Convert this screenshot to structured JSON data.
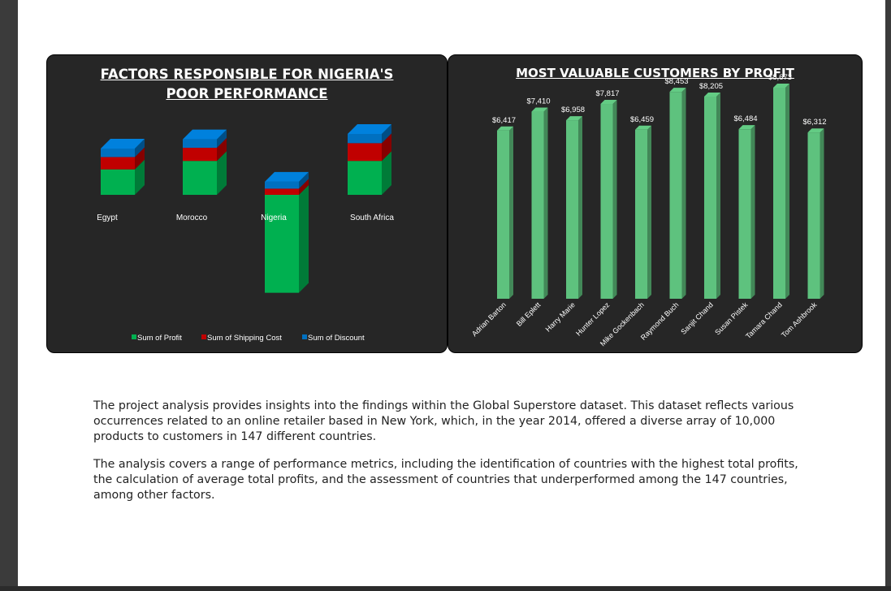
{
  "left_chart": {
    "title": "FACTORS  RESPONSIBLE FOR NIGERIA'S POOR PERFORMANCE",
    "legend": [
      {
        "label": "Sum of Profit",
        "color": "#00b050"
      },
      {
        "label": "Sum of Shipping Cost",
        "color": "#c00000"
      },
      {
        "label": "Sum of Discount",
        "color": "#0070c0"
      }
    ]
  },
  "right_chart": {
    "title": "MOST VALUABLE CUSTOMERS BY PROFIT"
  },
  "chart_data": [
    {
      "type": "bar",
      "stacked": true,
      "title": "FACTORS  RESPONSIBLE FOR NIGERIA'S POOR PERFORMANCE",
      "categories": [
        "Egypt",
        "Morocco",
        "Nigeria",
        "South Africa"
      ],
      "series": [
        {
          "name": "Sum of Profit",
          "values": [
            33,
            44,
            -127,
            44
          ],
          "color": "#00b050"
        },
        {
          "name": "Sum of Shipping Cost",
          "values": [
            16,
            17,
            8,
            23
          ],
          "color": "#c00000"
        },
        {
          "name": "Sum of Discount",
          "values": [
            11,
            11,
            9,
            12
          ],
          "color": "#0070c0"
        }
      ],
      "legend_position": "bottom"
    },
    {
      "type": "bar",
      "title": "MOST VALUABLE CUSTOMERS BY PROFIT",
      "categories": [
        "Adrian Barton",
        "Bill Eplett",
        "Harry Marie",
        "Hunter Lopez",
        "Mike Gockenbach",
        "Raymond Buch",
        "Sanjit Chand",
        "Susan Pistek",
        "Tamara Chand",
        "Tom Ashbrook"
      ],
      "values": [
        6417,
        7410,
        6958,
        7817,
        6459,
        8453,
        8205,
        6484,
        8673,
        6312
      ],
      "labels": [
        "$6,417",
        "$7,410",
        "$6,958",
        "$7,817",
        "$6,459",
        "$8,453",
        "$8,205",
        "$6,484",
        "$8,673",
        "$6,312"
      ],
      "color": "#5ec27e"
    }
  ],
  "paragraphs": [
    "The project analysis provides insights into the findings within the Global Superstore dataset. This dataset reflects various occurrences related to an online retailer based in New York, which, in the year 2014, offered a diverse array of 10,000 products to customers in 147 different countries.",
    "The analysis covers a range of performance metrics, including the identification of countries with the highest total profits, the calculation of average total profits, and the assessment of countries that underperformed among the 147 countries, among other factors."
  ]
}
